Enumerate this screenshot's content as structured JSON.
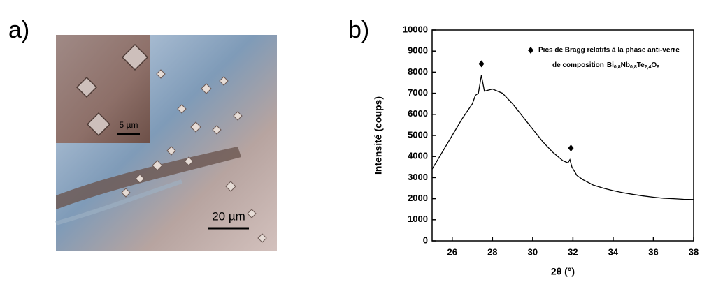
{
  "panel_a": {
    "label": "a)",
    "scale_inset": "5 µm",
    "scale_main": "20 µm"
  },
  "chart_data": {
    "type": "line",
    "panel_label": "b)",
    "x_label": "2θ (°)",
    "y_label": "Intensité (coups)",
    "x": [
      25,
      25.5,
      26,
      26.5,
      27,
      27.15,
      27.3,
      27.45,
      27.6,
      28,
      28.5,
      29,
      29.5,
      30,
      30.5,
      31,
      31.5,
      31.75,
      31.85,
      31.95,
      32.2,
      32.5,
      33,
      33.5,
      34,
      34.5,
      35,
      35.5,
      36,
      36.5,
      37,
      37.5,
      38
    ],
    "series": [
      {
        "color": "#000000",
        "values": [
          3400,
          4200,
          5000,
          5800,
          6500,
          6900,
          7000,
          7850,
          7100,
          7200,
          7000,
          6500,
          5900,
          5300,
          4700,
          4200,
          3800,
          3700,
          3850,
          3500,
          3100,
          2900,
          2650,
          2500,
          2380,
          2280,
          2200,
          2130,
          2070,
          2020,
          2000,
          1970,
          1960
        ]
      }
    ],
    "markers": {
      "legend_text": "Pics de Bragg relatifs à la phase anti-verre",
      "legend_prefix": "de composition",
      "formula": [
        {
          "el": "Bi",
          "sub": "0,8"
        },
        {
          "el": "Nb",
          "sub": "0,8"
        },
        {
          "el": "Te",
          "sub": "2,4"
        },
        {
          "el": "O",
          "sub": "6"
        }
      ],
      "x": [
        27.45,
        31.9
      ],
      "values": [
        8400,
        4400
      ]
    },
    "xlim": [
      25,
      38
    ],
    "xticks": [
      26,
      28,
      30,
      32,
      34,
      36,
      38
    ],
    "ylim": [
      0,
      10000
    ],
    "yticks": [
      0,
      1000,
      2000,
      3000,
      4000,
      5000,
      6000,
      7000,
      8000,
      9000,
      10000
    ]
  }
}
